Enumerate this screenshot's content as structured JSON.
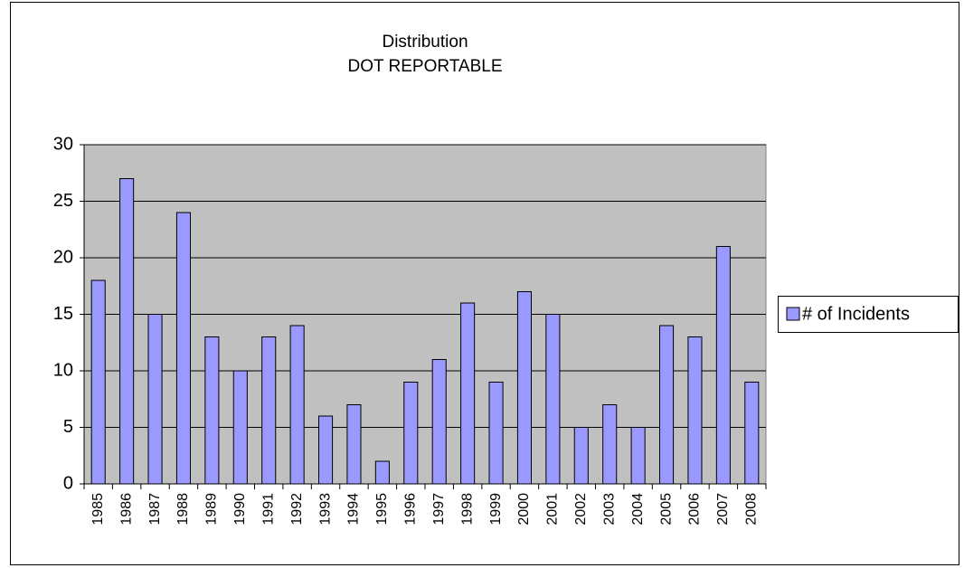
{
  "chart_data": {
    "type": "bar",
    "title": "Distribution",
    "subtitle": "DOT REPORTABLE",
    "categories": [
      "1985",
      "1986",
      "1987",
      "1988",
      "1989",
      "1990",
      "1991",
      "1992",
      "1993",
      "1994",
      "1995",
      "1996",
      "1997",
      "1998",
      "1999",
      "2000",
      "2001",
      "2002",
      "2003",
      "2004",
      "2005",
      "2006",
      "2007",
      "2008"
    ],
    "series": [
      {
        "name": "# of Incidents",
        "color": "#9999ff",
        "values": [
          18,
          27,
          15,
          24,
          13,
          10,
          13,
          14,
          6,
          7,
          2,
          9,
          11,
          16,
          9,
          17,
          15,
          5,
          7,
          5,
          14,
          13,
          21,
          9
        ]
      }
    ],
    "ylim": [
      0,
      30
    ],
    "yticks": [
      0,
      5,
      10,
      15,
      20,
      25,
      30
    ],
    "grid": true,
    "legend": "right"
  }
}
